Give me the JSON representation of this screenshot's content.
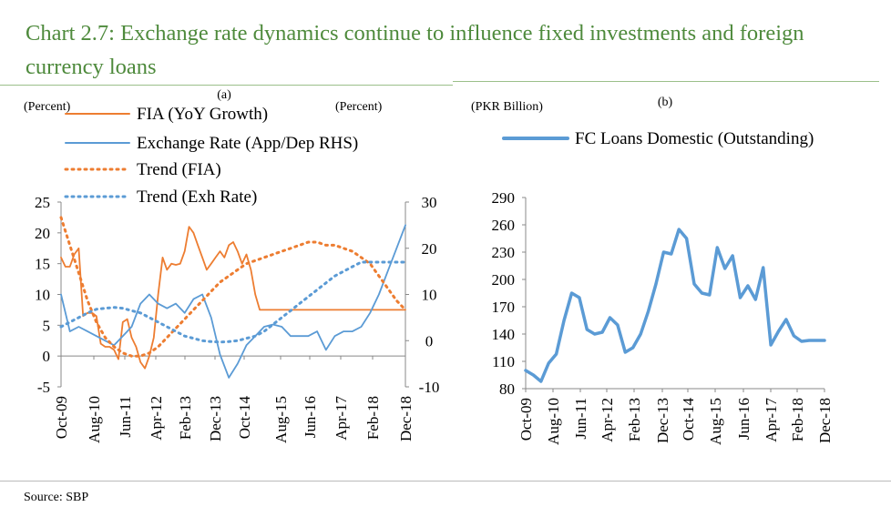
{
  "title": "Chart 2.7: Exchange rate dynamics continue to influence fixed investments and foreign currency loans",
  "source": "Source: SBP",
  "chart_data": [
    {
      "id": "a",
      "type": "line",
      "panel_label": "(a)",
      "left_axis_label": "(Percent)",
      "right_axis_label": "(Percent)",
      "x_tick_labels": [
        "Oct-09",
        "Aug-10",
        "Jun-11",
        "Apr-12",
        "Feb-13",
        "Dec-13",
        "Oct-14",
        "Aug-15",
        "Jun-16",
        "Apr-17",
        "Feb-18",
        "Dec-18"
      ],
      "ylim": [
        -5,
        25
      ],
      "yticks": [
        -5,
        0,
        5,
        10,
        15,
        20,
        25
      ],
      "y2lim": [
        -10,
        30
      ],
      "y2ticks": [
        -10,
        0,
        10,
        20,
        30
      ],
      "legend_position": "top-left",
      "series": [
        {
          "name": "FIA (YoY Growth)",
          "style": "solid",
          "color": "#ed7d31",
          "axis": "left",
          "x": [
            0,
            0.5,
            1,
            1.5,
            2,
            2.5,
            3,
            3.5,
            4,
            4.5,
            5,
            5.5,
            6,
            6.5,
            7,
            7.5,
            8,
            8.5,
            9,
            9.5,
            10,
            10.5,
            11,
            11.5,
            12,
            12.5,
            13,
            13.5,
            14,
            14.5,
            15,
            15.5,
            16,
            16.5,
            17,
            17.5,
            18,
            18.5,
            19,
            19.5,
            20,
            20.5,
            21,
            21.5,
            22,
            22.5,
            23,
            23.5,
            24,
            24.5,
            25,
            25.5,
            26,
            26.5,
            27,
            27.5,
            28,
            28.5,
            29,
            29.5,
            30,
            30.5,
            31,
            31.5,
            32,
            32.5,
            33,
            33.5,
            34,
            34.5,
            35,
            35.5,
            36,
            36.5,
            37,
            37.5,
            38,
            38.5,
            39
          ],
          "values": [
            16,
            14.5,
            14.5,
            16.5,
            17.5,
            6.5,
            7,
            7,
            6.5,
            2,
            1.5,
            1.5,
            1,
            -0.5,
            5.5,
            6,
            3,
            1.5,
            -1,
            -2,
            0,
            3,
            10,
            16,
            14,
            15,
            14.8,
            15,
            17,
            21,
            20,
            18,
            16,
            14,
            15,
            16,
            17,
            16,
            18,
            18.5,
            17,
            15,
            16.5,
            14,
            10,
            7.5,
            7.5,
            7.5,
            7.5,
            7.5,
            7.5,
            7.5,
            7.5,
            7.5,
            7.5,
            7.5,
            7.5,
            7.5,
            7.5,
            7.5,
            7.5,
            7.5,
            7.5,
            7.5,
            7.5,
            7.5,
            7.5,
            7.5,
            7.5,
            7.5,
            7.5,
            7.5,
            7.5,
            7.5,
            7.5,
            7.5,
            7.5,
            7.5,
            7.5
          ]
        },
        {
          "name": "Exchange Rate (App/Dep RHS)",
          "style": "solid",
          "color": "#5b9bd5",
          "axis": "right",
          "x": [
            0,
            1,
            2,
            3,
            4,
            5,
            6,
            7,
            8,
            9,
            10,
            11,
            12,
            13,
            14,
            15,
            16,
            17,
            18,
            19,
            20,
            21,
            22,
            23,
            24,
            25,
            26,
            27,
            28,
            29,
            30,
            31,
            32,
            33,
            34,
            35,
            36,
            37,
            38,
            39
          ],
          "values": [
            10,
            2,
            3,
            2,
            1,
            0,
            -1,
            1,
            3,
            8,
            10,
            8,
            7,
            8,
            6,
            9,
            10,
            5,
            -3,
            -8,
            -5,
            -1,
            1,
            3,
            3.5,
            3,
            1,
            1,
            1,
            2,
            -2,
            1,
            2,
            2,
            3,
            6,
            10,
            15,
            20,
            25
          ]
        },
        {
          "name": "Trend (FIA)",
          "style": "dotted",
          "color": "#ed7d31",
          "axis": "left",
          "x": [
            0,
            1,
            2,
            3,
            4,
            5,
            6,
            7,
            8,
            9,
            10,
            11,
            12,
            13,
            14,
            15,
            16,
            17,
            18,
            19,
            20,
            21,
            22,
            23,
            24,
            25,
            26,
            27,
            28,
            29,
            30,
            31,
            32,
            33,
            34,
            35,
            36,
            37,
            38,
            39
          ],
          "values": [
            22.5,
            18,
            13.5,
            9,
            5.5,
            3,
            1.5,
            0.5,
            0,
            0,
            0.5,
            1.5,
            3,
            4.5,
            6,
            7.5,
            9,
            10.5,
            12,
            13,
            14,
            15,
            15.5,
            16,
            16.5,
            17,
            17.5,
            18,
            18.5,
            18.5,
            18,
            18,
            17.5,
            17,
            16,
            15,
            13,
            11,
            9,
            7.5
          ]
        },
        {
          "name": "Trend (Exh Rate)",
          "style": "dotted",
          "color": "#5b9bd5",
          "axis": "right",
          "x": [
            0,
            1,
            2,
            3,
            4,
            5,
            6,
            7,
            8,
            9,
            10,
            11,
            12,
            13,
            14,
            15,
            16,
            17,
            18,
            19,
            20,
            21,
            22,
            23,
            24,
            25,
            26,
            27,
            28,
            29,
            30,
            31,
            32,
            33,
            34,
            35,
            36,
            37,
            38,
            39
          ],
          "values": [
            3,
            4,
            5,
            6,
            6.8,
            7,
            7.2,
            7,
            6.5,
            6,
            5,
            4,
            3,
            2,
            1,
            0.5,
            0,
            -0.2,
            -0.3,
            -0.2,
            0,
            0.5,
            1,
            2,
            3.5,
            5,
            6.5,
            8,
            9.5,
            11,
            12.5,
            14,
            15,
            16,
            17,
            17,
            17,
            17,
            17,
            17
          ]
        }
      ]
    },
    {
      "id": "b",
      "type": "line",
      "panel_label": "(b)",
      "left_axis_label": "(PKR Billion)",
      "x_tick_labels": [
        "Oct-09",
        "Aug-10",
        "Jun-11",
        "Apr-12",
        "Feb-13",
        "Dec-13",
        "Oct-14",
        "Aug-15",
        "Jun-16",
        "Apr-17",
        "Feb-18",
        "Dec-18"
      ],
      "ylim": [
        80,
        290
      ],
      "yticks": [
        80,
        110,
        140,
        170,
        200,
        230,
        260,
        290
      ],
      "legend_position": "top",
      "series": [
        {
          "name": "FC Loans Domestic (Outstanding)",
          "style": "solid",
          "color": "#5b9bd5",
          "axis": "left",
          "x": [
            0,
            1,
            2,
            3,
            4,
            5,
            6,
            7,
            8,
            9,
            10,
            11,
            12,
            13,
            14,
            15,
            16,
            17,
            18,
            19,
            20,
            21,
            22,
            23,
            24,
            25,
            26,
            27,
            28,
            29,
            30,
            31,
            32,
            33,
            34,
            35,
            36,
            37,
            38,
            39
          ],
          "values": [
            100,
            95,
            88,
            108,
            118,
            155,
            185,
            180,
            145,
            140,
            142,
            158,
            150,
            120,
            125,
            140,
            165,
            195,
            230,
            228,
            255,
            245,
            195,
            185,
            183,
            235,
            212,
            226,
            180,
            193,
            178,
            213,
            128,
            143,
            156,
            138,
            132,
            133,
            133,
            133
          ]
        }
      ]
    }
  ]
}
